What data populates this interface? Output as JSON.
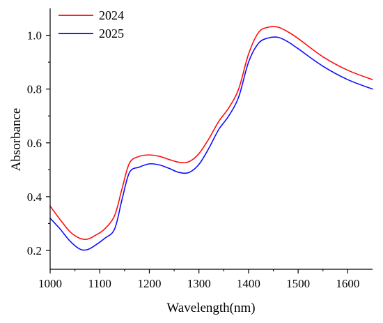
{
  "chart_data": {
    "type": "line",
    "title": "",
    "xlabel": "Wavelength(nm)",
    "ylabel": "Absorbance",
    "xlim": [
      1000,
      1650
    ],
    "ylim": [
      0.13,
      1.1
    ],
    "xticks": [
      1000,
      1100,
      1200,
      1300,
      1400,
      1500,
      1600
    ],
    "xtick_labels": [
      "1000",
      "1100",
      "1200",
      "1300",
      "1400",
      "1500",
      "1600"
    ],
    "yticks": [
      0.2,
      0.4,
      0.6,
      0.8,
      1.0
    ],
    "ytick_labels": [
      "0.2",
      "0.4",
      "0.6",
      "0.8",
      "1.0"
    ],
    "grid": false,
    "legend_position": "top-left",
    "series": [
      {
        "name": "2024",
        "color": "#ff0000",
        "x": [
          1000,
          1020,
          1040,
          1060,
          1075,
          1090,
          1110,
          1130,
          1145,
          1160,
          1180,
          1200,
          1220,
          1240,
          1260,
          1280,
          1300,
          1320,
          1340,
          1360,
          1380,
          1400,
          1420,
          1440,
          1460,
          1480,
          1500,
          1550,
          1600,
          1650
        ],
        "y": [
          0.365,
          0.315,
          0.27,
          0.245,
          0.242,
          0.255,
          0.28,
          0.33,
          0.43,
          0.525,
          0.55,
          0.555,
          0.55,
          0.538,
          0.528,
          0.53,
          0.56,
          0.615,
          0.68,
          0.73,
          0.8,
          0.93,
          1.01,
          1.03,
          1.03,
          1.012,
          0.988,
          0.92,
          0.87,
          0.835
        ]
      },
      {
        "name": "2025",
        "color": "#0000ff",
        "x": [
          1000,
          1020,
          1040,
          1060,
          1075,
          1090,
          1110,
          1130,
          1145,
          1160,
          1180,
          1200,
          1220,
          1240,
          1260,
          1280,
          1300,
          1320,
          1340,
          1360,
          1380,
          1400,
          1420,
          1440,
          1460,
          1480,
          1500,
          1550,
          1600,
          1650
        ],
        "y": [
          0.32,
          0.28,
          0.235,
          0.205,
          0.203,
          0.218,
          0.245,
          0.28,
          0.39,
          0.49,
          0.51,
          0.522,
          0.518,
          0.505,
          0.49,
          0.49,
          0.52,
          0.58,
          0.65,
          0.7,
          0.77,
          0.9,
          0.97,
          0.99,
          0.992,
          0.975,
          0.95,
          0.885,
          0.835,
          0.8
        ]
      }
    ]
  }
}
